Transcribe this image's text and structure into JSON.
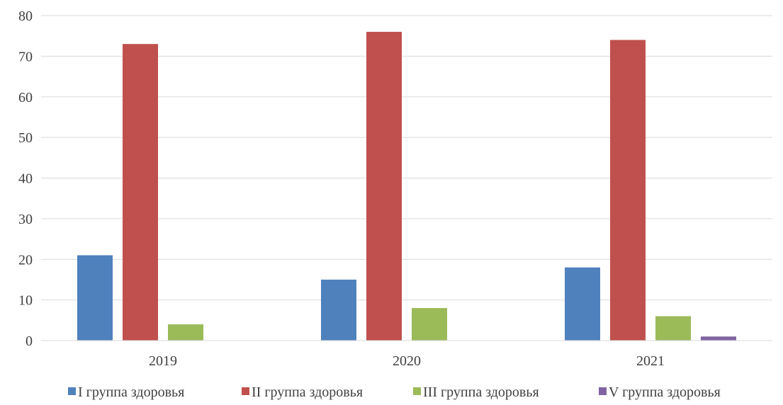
{
  "chart_data": {
    "type": "bar",
    "title": "",
    "xlabel": "",
    "ylabel": "",
    "categories": [
      "2019",
      "2020",
      "2021"
    ],
    "ylim": [
      0,
      80
    ],
    "yticks": [
      0,
      10,
      20,
      30,
      40,
      50,
      60,
      70,
      80
    ],
    "grid": true,
    "legend_position": "bottom",
    "series": [
      {
        "name": "I группа здоровья",
        "color": "#4F81BD",
        "values": [
          21,
          15,
          18
        ]
      },
      {
        "name": "II группа здоровья",
        "color": "#C0504D",
        "values": [
          73,
          76,
          74
        ]
      },
      {
        "name": "III группа здоровья",
        "color": "#9BBB59",
        "values": [
          4,
          8,
          6
        ]
      },
      {
        "name": "V группа здоровья",
        "color": "#8064A2",
        "values": [
          0,
          0,
          1
        ]
      }
    ]
  }
}
